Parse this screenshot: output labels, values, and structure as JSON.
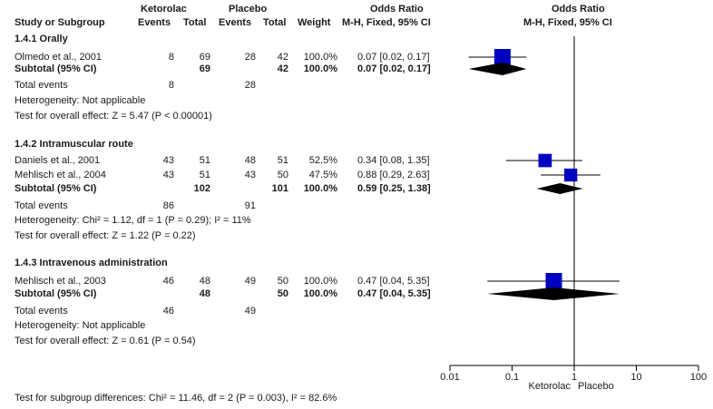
{
  "header": {
    "group1": "Ketorolac",
    "group2": "Placebo",
    "or_title": "Odds Ratio",
    "or_title2": "Odds Ratio",
    "col_study": "Study or Subgroup",
    "col_events": "Events",
    "col_total": "Total",
    "col_events2": "Events",
    "col_total2": "Total",
    "col_weight": "Weight",
    "col_method": "M-H, Fixed, 95% CI",
    "col_method2": "M-H, Fixed, 95% CI"
  },
  "subgroups": [
    {
      "title": "1.4.1 Orally",
      "studies": [
        {
          "name": "Olmedo et al., 2001",
          "e1": "8",
          "t1": "69",
          "e2": "28",
          "t2": "42",
          "weight": "100.0%",
          "ci": "0.07 [0.02, 0.17]"
        }
      ],
      "subtotal": {
        "label": "Subtotal (95% CI)",
        "t1": "69",
        "t2": "42",
        "weight": "100.0%",
        "ci": "0.07 [0.02, 0.17]"
      },
      "total_events": {
        "label": "Total events",
        "e1": "8",
        "e2": "28"
      },
      "heterogeneity": "Heterogeneity: Not applicable",
      "overall": "Test for overall effect: Z = 5.47 (P < 0.00001)"
    },
    {
      "title": "1.4.2 Intramuscular route",
      "studies": [
        {
          "name": "Daniels et al., 2001",
          "e1": "43",
          "t1": "51",
          "e2": "48",
          "t2": "51",
          "weight": "52.5%",
          "ci": "0.34 [0.08, 1.35]"
        },
        {
          "name": "Mehlisch et al., 2004",
          "e1": "43",
          "t1": "51",
          "e2": "43",
          "t2": "50",
          "weight": "47.5%",
          "ci": "0.88 [0.29, 2.63]"
        }
      ],
      "subtotal": {
        "label": "Subtotal (95% CI)",
        "t1": "102",
        "t2": "101",
        "weight": "100.0%",
        "ci": "0.59 [0.25, 1.38]"
      },
      "total_events": {
        "label": "Total events",
        "e1": "86",
        "e2": "91"
      },
      "heterogeneity": "Heterogeneity: Chi² = 1.12, df = 1 (P = 0.29); I² = 11%",
      "overall": "Test for overall effect: Z = 1.22 (P = 0.22)"
    },
    {
      "title": "1.4.3 Intravenous administration",
      "studies": [
        {
          "name": "Mehlisch et al., 2003",
          "e1": "46",
          "t1": "48",
          "e2": "49",
          "t2": "50",
          "weight": "100.0%",
          "ci": "0.47 [0.04, 5.35]"
        }
      ],
      "subtotal": {
        "label": "Subtotal (95% CI)",
        "t1": "48",
        "t2": "50",
        "weight": "100.0%",
        "ci": "0.47 [0.04, 5.35]"
      },
      "total_events": {
        "label": "Total events",
        "e1": "46",
        "e2": "49"
      },
      "heterogeneity": "Heterogeneity: Not applicable",
      "overall": "Test for overall effect: Z = 0.61 (P = 0.54)"
    }
  ],
  "footer": {
    "subgroup_test": "Test for subgroup differences: Chi² = 11.46, df = 2 (P = 0.003), I² = 82.6%"
  },
  "axis": {
    "favours_left": "Ketorolac",
    "favours_right": "Placebo"
  },
  "colors": {
    "study_marker": "#0000c0",
    "summary_diamond": "#000000"
  },
  "chart_data": {
    "type": "forest",
    "title": "Odds Ratio",
    "xscale": "log",
    "xlim": [
      0.01,
      100
    ],
    "xticks": [
      0.01,
      0.1,
      1,
      10,
      100
    ],
    "xtick_labels": [
      "0.01",
      "0.1",
      "1",
      "10",
      "100"
    ],
    "reference_line": 1,
    "studies": [
      {
        "name": "Olmedo et al., 2001",
        "or": 0.07,
        "lo": 0.02,
        "hi": 0.17,
        "weight": 100.0
      },
      {
        "name": "Daniels et al., 2001",
        "or": 0.34,
        "lo": 0.08,
        "hi": 1.35,
        "weight": 52.5
      },
      {
        "name": "Mehlisch et al., 2004",
        "or": 0.88,
        "lo": 0.29,
        "hi": 2.63,
        "weight": 47.5
      },
      {
        "name": "Mehlisch et al., 2003",
        "or": 0.47,
        "lo": 0.04,
        "hi": 5.35,
        "weight": 100.0
      }
    ],
    "subtotals": [
      {
        "name": "1.4.1 Orally",
        "or": 0.07,
        "lo": 0.02,
        "hi": 0.17
      },
      {
        "name": "1.4.2 Intramuscular route",
        "or": 0.59,
        "lo": 0.25,
        "hi": 1.38
      },
      {
        "name": "1.4.3 Intravenous administration",
        "or": 0.47,
        "lo": 0.04,
        "hi": 5.35
      }
    ]
  }
}
